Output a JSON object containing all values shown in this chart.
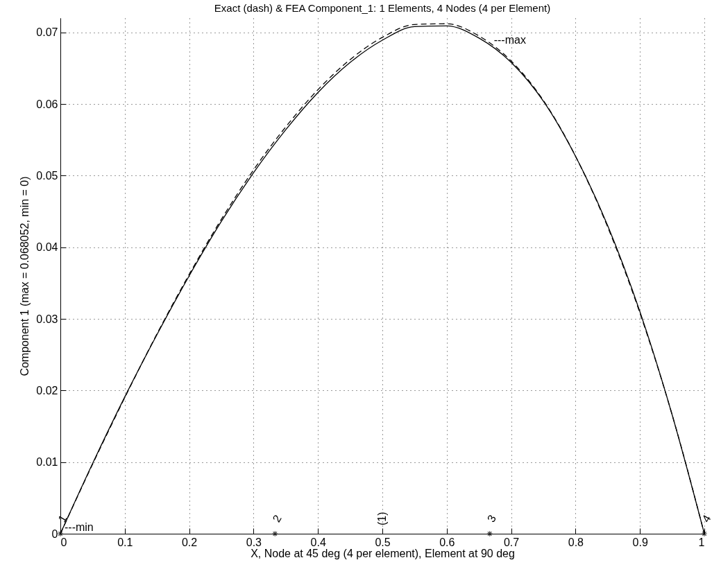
{
  "chart_data": {
    "type": "line",
    "title": "Exact (dash) & FEA Component_1:   1 Elements, 4 Nodes (4 per Element)",
    "xlabel": "X, Node at 45 deg (4 per element), Element at 90 deg",
    "ylabel": "Component 1 (max = 0.068052, min = 0)",
    "xlim": [
      0,
      1
    ],
    "ylim": [
      0,
      0.072
    ],
    "xticks": [
      0,
      0.1,
      0.2,
      0.3,
      0.4,
      0.5,
      0.6,
      0.7,
      0.8,
      0.9,
      1
    ],
    "yticks": [
      0,
      0.01,
      0.02,
      0.03,
      0.04,
      0.05,
      0.06,
      0.07
    ],
    "grid": true,
    "series": [
      {
        "color": "#000000",
        "line_style": "dashed",
        "x": [
          0,
          0.05,
          0.1,
          0.15,
          0.2,
          0.25,
          0.3,
          0.35,
          0.4,
          0.45,
          0.5,
          0.55,
          0.6,
          0.65,
          0.7,
          0.75,
          0.8,
          0.85,
          0.9,
          0.95,
          1
        ],
        "values": [
          0,
          0.0097,
          0.019,
          0.0279,
          0.0362,
          0.0439,
          0.0508,
          0.0568,
          0.062,
          0.0662,
          0.0693,
          0.0711,
          0.0712,
          0.0695,
          0.066,
          0.0605,
          0.0527,
          0.0428,
          0.0308,
          0.0166,
          0
        ]
      },
      {
        "color": "#000000",
        "line_style": "solid",
        "x": [
          0,
          0.05,
          0.1,
          0.15,
          0.2,
          0.25,
          0.3,
          0.35,
          0.4,
          0.45,
          0.5,
          0.55,
          0.6,
          0.65,
          0.7,
          0.75,
          0.8,
          0.85,
          0.9,
          0.95,
          1
        ],
        "values": [
          0,
          0.0098,
          0.0191,
          0.0278,
          0.036,
          0.0436,
          0.0504,
          0.0564,
          0.0616,
          0.0658,
          0.0689,
          0.0708,
          0.0709,
          0.0692,
          0.0658,
          0.0604,
          0.0527,
          0.043,
          0.031,
          0.0166,
          0
        ]
      },
      {
        "type": "scatter",
        "color": "#000000",
        "marker": "cross",
        "x": [
          0,
          0.3333,
          0.6667,
          1
        ],
        "values": [
          0,
          0,
          0,
          0
        ]
      }
    ],
    "annotations": [
      {
        "text": "1",
        "x": 0,
        "y": 0
      },
      {
        "text": "2",
        "x": 0.3333,
        "y": 0
      },
      {
        "text": "3",
        "x": 0.6667,
        "y": 0
      },
      {
        "text": "4",
        "x": 1,
        "y": 0
      },
      "(1)",
      {
        "text": "---min",
        "x": 0,
        "y": 0
      },
      {
        "text": "---max",
        "x": 0.6667,
        "y": 0.068052
      }
    ]
  }
}
